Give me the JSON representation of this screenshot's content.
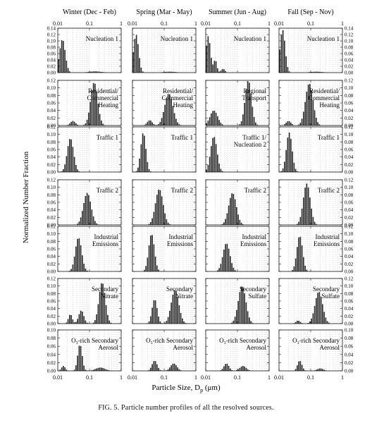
{
  "figure": {
    "caption": "FIG. 5.   Particle number profiles of all the resolved sources.",
    "y_axis_title": "Normalized Number Fraction",
    "x_axis_title_pre": "Particle Size, D",
    "x_axis_title_sub": "p",
    "x_axis_title_post": " (μm)"
  },
  "chart_data": {
    "type": "bar",
    "x_scale": "log",
    "x_range": [
      0.01,
      1
    ],
    "x_tick_labels": [
      "0.01",
      "0.1",
      "1"
    ],
    "columns": [
      "Winter (Dec - Feb)",
      "Spring (Mar - May)",
      "Summer (Jun - Aug)",
      "Fall (Sep - Nov)"
    ],
    "rows": [
      {
        "y_ticks": [
          "0.00",
          "0.02",
          "0.04",
          "0.06",
          "0.08",
          "0.10",
          "0.12",
          "0.14"
        ],
        "ymax": 0.14,
        "panels": [
          {
            "label": [
              "Nucleation 1"
            ],
            "peaks": [
              {
                "mode": 0.014,
                "height": 0.105,
                "sigma": 0.09
              },
              {
                "mode": 0.15,
                "height": 0.004,
                "sigma": 0.2
              }
            ]
          },
          {
            "label": [
              "Nucleation 1"
            ],
            "peaks": [
              {
                "mode": 0.013,
                "height": 0.12,
                "sigma": 0.08
              },
              {
                "mode": 0.15,
                "height": 0.003,
                "sigma": 0.2
              }
            ]
          },
          {
            "label": [
              "Nucleation 1"
            ],
            "peaks": [
              {
                "mode": 0.012,
                "height": 0.115,
                "sigma": 0.07
              },
              {
                "mode": 0.02,
                "height": 0.04,
                "sigma": 0.05
              },
              {
                "mode": 0.035,
                "height": 0.012,
                "sigma": 0.06
              }
            ]
          },
          {
            "label": [
              "Nucleation 1"
            ],
            "peaks": [
              {
                "mode": 0.013,
                "height": 0.135,
                "sigma": 0.08
              },
              {
                "mode": 0.15,
                "height": 0.003,
                "sigma": 0.2
              }
            ]
          }
        ]
      },
      {
        "y_ticks": [
          "0.00",
          "0.02",
          "0.04",
          "0.06",
          "0.08",
          "0.10",
          "0.12"
        ],
        "ymax": 0.12,
        "panels": [
          {
            "label": [
              "Residential/",
              "Commercial",
              "Heating"
            ],
            "peaks": [
              {
                "mode": 0.14,
                "height": 0.115,
                "sigma": 0.11
              },
              {
                "mode": 0.03,
                "height": 0.012,
                "sigma": 0.08
              }
            ]
          },
          {
            "label": [
              "Residential/",
              "Commercial",
              "Heating"
            ],
            "peaks": [
              {
                "mode": 0.14,
                "height": 0.085,
                "sigma": 0.13
              },
              {
                "mode": 0.035,
                "height": 0.014,
                "sigma": 0.08
              }
            ]
          },
          {
            "label": [
              "Regional",
              "Transport"
            ],
            "peaks": [
              {
                "mode": 0.22,
                "height": 0.12,
                "sigma": 0.1
              },
              {
                "mode": 0.018,
                "height": 0.04,
                "sigma": 0.12
              }
            ]
          },
          {
            "label": [
              "Residential/",
              "Commercial",
              "Heating"
            ],
            "peaks": [
              {
                "mode": 0.09,
                "height": 0.112,
                "sigma": 0.12
              },
              {
                "mode": 0.02,
                "height": 0.012,
                "sigma": 0.08
              }
            ]
          }
        ]
      },
      {
        "y_ticks": [
          "0.00",
          "0.02",
          "0.04",
          "0.06",
          "0.08",
          "0.10",
          "0.12"
        ],
        "ymax": 0.12,
        "panels": [
          {
            "label": [
              "Traffic 1"
            ],
            "peaks": [
              {
                "mode": 0.025,
                "height": 0.09,
                "sigma": 0.1
              }
            ]
          },
          {
            "label": [
              "Traffic 1"
            ],
            "peaks": [
              {
                "mode": 0.022,
                "height": 0.105,
                "sigma": 0.08
              }
            ]
          },
          {
            "label": [
              "Traffic 1/",
              "Nucleation 2"
            ],
            "peaks": [
              {
                "mode": 0.018,
                "height": 0.095,
                "sigma": 0.1
              }
            ]
          },
          {
            "label": [
              "Traffic 1"
            ],
            "peaks": [
              {
                "mode": 0.021,
                "height": 0.105,
                "sigma": 0.09
              }
            ]
          }
        ]
      },
      {
        "y_ticks": [
          "0.00",
          "0.02",
          "0.04",
          "0.06",
          "0.08",
          "0.10",
          "0.12"
        ],
        "ymax": 0.12,
        "panels": [
          {
            "label": [
              "Traffic 2"
            ],
            "peaks": [
              {
                "mode": 0.085,
                "height": 0.085,
                "sigma": 0.12
              }
            ]
          },
          {
            "label": [
              "Traffic 2"
            ],
            "peaks": [
              {
                "mode": 0.07,
                "height": 0.095,
                "sigma": 0.12
              }
            ]
          },
          {
            "label": [
              "Traffic 2"
            ],
            "peaks": [
              {
                "mode": 0.07,
                "height": 0.085,
                "sigma": 0.12
              }
            ]
          },
          {
            "label": [
              "Traffic 2"
            ],
            "peaks": [
              {
                "mode": 0.075,
                "height": 0.11,
                "sigma": 0.11
              }
            ]
          }
        ]
      },
      {
        "y_ticks": [
          "0.00",
          "0.02",
          "0.04",
          "0.06",
          "0.08",
          "0.10",
          "0.12"
        ],
        "ymax": 0.12,
        "panels": [
          {
            "label": [
              "Industrial",
              "Emissions"
            ],
            "peaks": [
              {
                "mode": 0.045,
                "height": 0.09,
                "sigma": 0.1
              }
            ]
          },
          {
            "label": [
              "Industrial",
              "Emissions"
            ],
            "peaks": [
              {
                "mode": 0.04,
                "height": 0.1,
                "sigma": 0.09
              }
            ]
          },
          {
            "label": [
              "Industrial",
              "Emissions"
            ],
            "peaks": [
              {
                "mode": 0.045,
                "height": 0.075,
                "sigma": 0.11
              }
            ]
          },
          {
            "label": [
              "Industrial",
              "Emissions"
            ],
            "peaks": [
              {
                "mode": 0.045,
                "height": 0.095,
                "sigma": 0.09
              }
            ]
          }
        ]
      },
      {
        "y_ticks": [
          "0.00",
          "0.02",
          "0.04",
          "0.06",
          "0.08",
          "0.10",
          "0.12"
        ],
        "ymax": 0.12,
        "panels": [
          {
            "label": [
              "Secondary",
              "Nitrate"
            ],
            "peaks": [
              {
                "mode": 0.25,
                "height": 0.11,
                "sigma": 0.1
              },
              {
                "mode": 0.055,
                "height": 0.035,
                "sigma": 0.08
              },
              {
                "mode": 0.025,
                "height": 0.025,
                "sigma": 0.06
              }
            ]
          },
          {
            "label": [
              "Secondary",
              "Nitrate"
            ],
            "peaks": [
              {
                "mode": 0.22,
                "height": 0.09,
                "sigma": 0.12
              },
              {
                "mode": 0.05,
                "height": 0.065,
                "sigma": 0.08
              }
            ]
          },
          {
            "label": [
              "Secondary",
              "Sulfate"
            ],
            "peaks": [
              {
                "mode": 0.14,
                "height": 0.1,
                "sigma": 0.12
              }
            ]
          },
          {
            "label": [
              "Secondary",
              "Sulfate"
            ],
            "peaks": [
              {
                "mode": 0.18,
                "height": 0.085,
                "sigma": 0.12
              },
              {
                "mode": 0.04,
                "height": 0.008,
                "sigma": 0.07
              }
            ]
          }
        ]
      },
      {
        "y_ticks": [
          "0.00",
          "0.02",
          "0.04",
          "0.06",
          "0.08",
          "0.10"
        ],
        "ymax": 0.1,
        "panels": [
          {
            "label": [
              "O₃-rich Secondary",
              "Aerosol"
            ],
            "peaks": [
              {
                "mode": 0.05,
                "height": 0.065,
                "sigma": 0.07
              },
              {
                "mode": 0.015,
                "height": 0.012,
                "sigma": 0.06
              },
              {
                "mode": 0.22,
                "height": 0.008,
                "sigma": 0.15
              }
            ]
          },
          {
            "label": [
              "O₃-rich Secondary",
              "Aerosol"
            ],
            "peaks": [
              {
                "mode": 0.05,
                "height": 0.025,
                "sigma": 0.08
              },
              {
                "mode": 0.2,
                "height": 0.018,
                "sigma": 0.1
              }
            ]
          },
          {
            "label": [
              "O₃-rich Secondary",
              "Aerosol"
            ],
            "peaks": [
              {
                "mode": 0.045,
                "height": 0.018,
                "sigma": 0.08
              },
              {
                "mode": 0.15,
                "height": 0.012,
                "sigma": 0.1
              }
            ]
          },
          {
            "label": [
              "O₃-rich Secondary",
              "Aerosol"
            ],
            "peaks": [
              {
                "mode": 0.045,
                "height": 0.025,
                "sigma": 0.07
              },
              {
                "mode": 0.2,
                "height": 0.006,
                "sigma": 0.1
              }
            ]
          }
        ]
      }
    ]
  }
}
